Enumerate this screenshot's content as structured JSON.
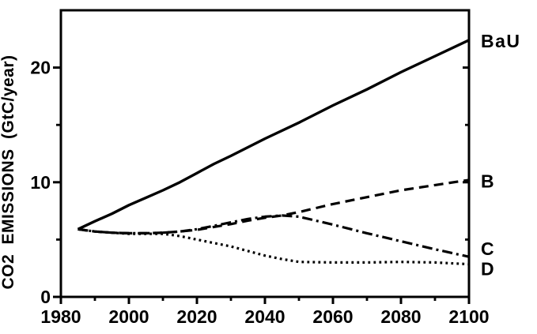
{
  "colors": {
    "ink": "#000000",
    "background": "#ffffff"
  },
  "chart_data": {
    "type": "line",
    "title": "",
    "xlabel": "",
    "ylabel": "CO2 EMISSIONS (GtC/year)",
    "xlim": [
      1980,
      2100
    ],
    "ylim": [
      0,
      25
    ],
    "x_major_ticks": [
      1980,
      2000,
      2020,
      2040,
      2060,
      2080,
      2100
    ],
    "x_minor_ticks": [
      1990,
      2010,
      2030,
      2050,
      2070,
      2090
    ],
    "y_major_ticks": [
      0,
      10,
      20
    ],
    "y_minor_ticks": [
      5,
      15
    ],
    "grid": false,
    "frame": "box",
    "legend_position": "outside-right",
    "series": [
      {
        "name": "BaU",
        "line_style": "solid",
        "label_y": 22.3,
        "x": [
          1985,
          1990,
          1995,
          2000,
          2005,
          2010,
          2015,
          2020,
          2025,
          2030,
          2040,
          2050,
          2060,
          2070,
          2080,
          2090,
          2100
        ],
        "values": [
          5.9,
          6.6,
          7.25,
          8.0,
          8.65,
          9.3,
          10.0,
          10.8,
          11.6,
          12.3,
          13.8,
          15.2,
          16.7,
          18.1,
          19.6,
          21.0,
          22.4
        ]
      },
      {
        "name": "B",
        "line_style": "dashed",
        "label_y": 10.1,
        "x": [
          1985,
          1990,
          1995,
          2000,
          2005,
          2010,
          2015,
          2020,
          2025,
          2030,
          2035,
          2040,
          2045,
          2050,
          2060,
          2070,
          2080,
          2090,
          2100
        ],
        "values": [
          5.9,
          5.7,
          5.6,
          5.55,
          5.55,
          5.6,
          5.7,
          5.85,
          6.1,
          6.35,
          6.65,
          6.9,
          7.1,
          7.4,
          8.1,
          8.7,
          9.3,
          9.75,
          10.2
        ]
      },
      {
        "name": "C",
        "line_style": "dashdot",
        "label_y": 4.2,
        "x": [
          1985,
          1990,
          1995,
          2000,
          2005,
          2010,
          2015,
          2020,
          2025,
          2030,
          2035,
          2040,
          2045,
          2050,
          2060,
          2070,
          2080,
          2090,
          2100
        ],
        "values": [
          5.9,
          5.7,
          5.6,
          5.55,
          5.55,
          5.6,
          5.7,
          5.9,
          6.2,
          6.5,
          6.8,
          7.0,
          7.1,
          7.0,
          6.3,
          5.55,
          4.85,
          4.15,
          3.5
        ]
      },
      {
        "name": "D",
        "line_style": "dotted",
        "label_y": 2.45,
        "x": [
          1985,
          1990,
          1995,
          2000,
          2005,
          2010,
          2015,
          2020,
          2025,
          2030,
          2035,
          2040,
          2045,
          2050,
          2060,
          2070,
          2080,
          2090,
          2100
        ],
        "values": [
          5.9,
          5.7,
          5.6,
          5.5,
          5.5,
          5.5,
          5.3,
          5.0,
          4.7,
          4.4,
          4.0,
          3.6,
          3.3,
          3.05,
          3.0,
          3.0,
          3.05,
          3.0,
          2.85
        ]
      }
    ]
  }
}
